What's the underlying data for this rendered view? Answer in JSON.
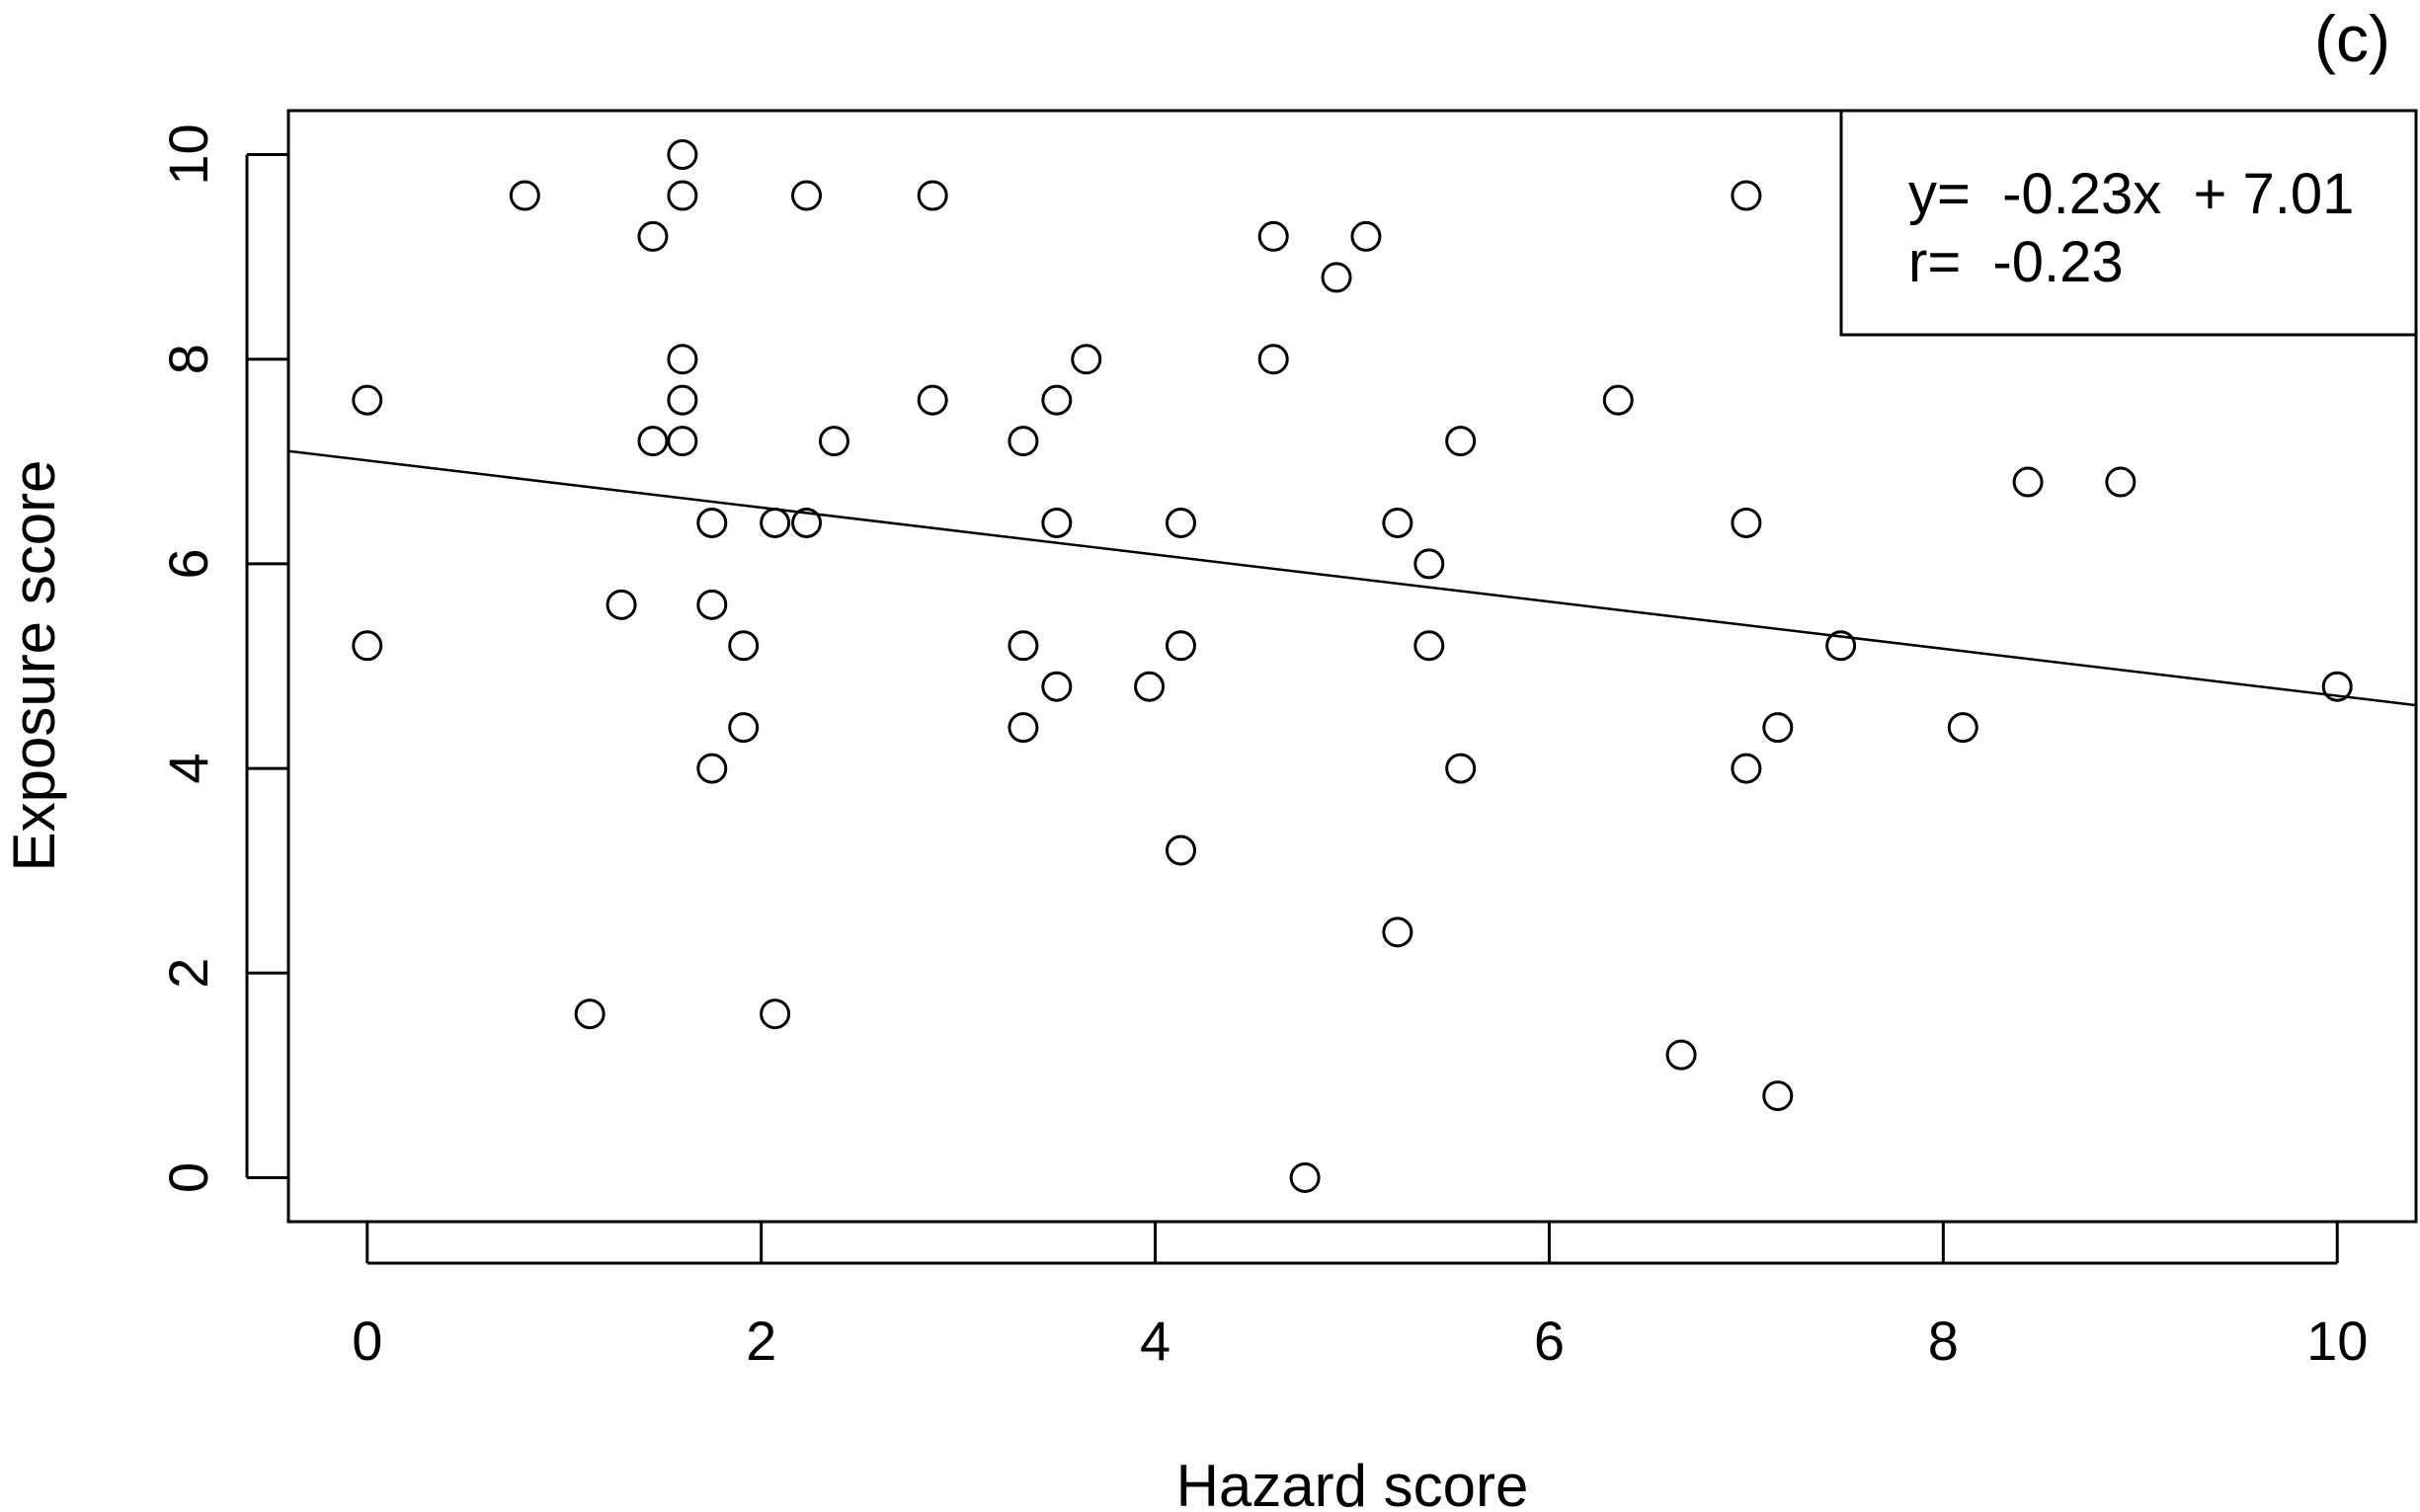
{
  "panel_label": "(c)",
  "chart_data": {
    "type": "scatter",
    "xlabel": "Hazard score",
    "ylabel": "Exposure score",
    "xlim": [
      -0.4,
      10.4
    ],
    "ylim": [
      -0.43,
      10.43
    ],
    "xticks": [
      0,
      2,
      4,
      6,
      8,
      10
    ],
    "yticks": [
      0,
      2,
      4,
      6,
      8,
      10
    ],
    "grid": false,
    "legend_position": "top-right",
    "legend": [
      "y=  -0.23x  + 7.01",
      "r=  -0.23"
    ],
    "regression": {
      "slope": -0.23,
      "intercept": 7.01
    },
    "points": [
      [
        0.8,
        9.6
      ],
      [
        1.6,
        10.0
      ],
      [
        1.6,
        9.6
      ],
      [
        1.45,
        9.2
      ],
      [
        2.23,
        9.6
      ],
      [
        2.87,
        9.6
      ],
      [
        4.6,
        9.2
      ],
      [
        5.07,
        9.2
      ],
      [
        4.92,
        8.8
      ],
      [
        7.0,
        9.6
      ],
      [
        0.0,
        7.6
      ],
      [
        1.6,
        8.0
      ],
      [
        1.6,
        7.6
      ],
      [
        1.45,
        7.2
      ],
      [
        1.6,
        7.2
      ],
      [
        2.37,
        7.2
      ],
      [
        2.87,
        7.6
      ],
      [
        3.33,
        7.2
      ],
      [
        3.5,
        7.6
      ],
      [
        3.65,
        8.0
      ],
      [
        4.6,
        8.0
      ],
      [
        5.55,
        7.2
      ],
      [
        6.35,
        7.6
      ],
      [
        8.43,
        6.8
      ],
      [
        8.9,
        6.8
      ],
      [
        1.75,
        6.4
      ],
      [
        2.07,
        6.4
      ],
      [
        2.23,
        6.4
      ],
      [
        3.5,
        6.4
      ],
      [
        4.13,
        6.4
      ],
      [
        5.23,
        6.4
      ],
      [
        5.39,
        6.0
      ],
      [
        7.0,
        6.4
      ],
      [
        0.0,
        5.2
      ],
      [
        1.29,
        5.6
      ],
      [
        1.75,
        5.6
      ],
      [
        1.91,
        5.2
      ],
      [
        3.33,
        5.2
      ],
      [
        4.13,
        5.2
      ],
      [
        5.39,
        5.2
      ],
      [
        7.48,
        5.2
      ],
      [
        3.5,
        4.8
      ],
      [
        3.97,
        4.8
      ],
      [
        10.0,
        4.8
      ],
      [
        1.91,
        4.4
      ],
      [
        1.75,
        4.0
      ],
      [
        3.33,
        4.4
      ],
      [
        5.55,
        4.0
      ],
      [
        7.0,
        4.0
      ],
      [
        7.16,
        4.4
      ],
      [
        8.1,
        4.4
      ],
      [
        4.13,
        3.2
      ],
      [
        5.23,
        2.4
      ],
      [
        1.13,
        1.6
      ],
      [
        2.07,
        1.6
      ],
      [
        6.67,
        1.2
      ],
      [
        7.16,
        0.8
      ],
      [
        4.76,
        0.0
      ]
    ]
  }
}
